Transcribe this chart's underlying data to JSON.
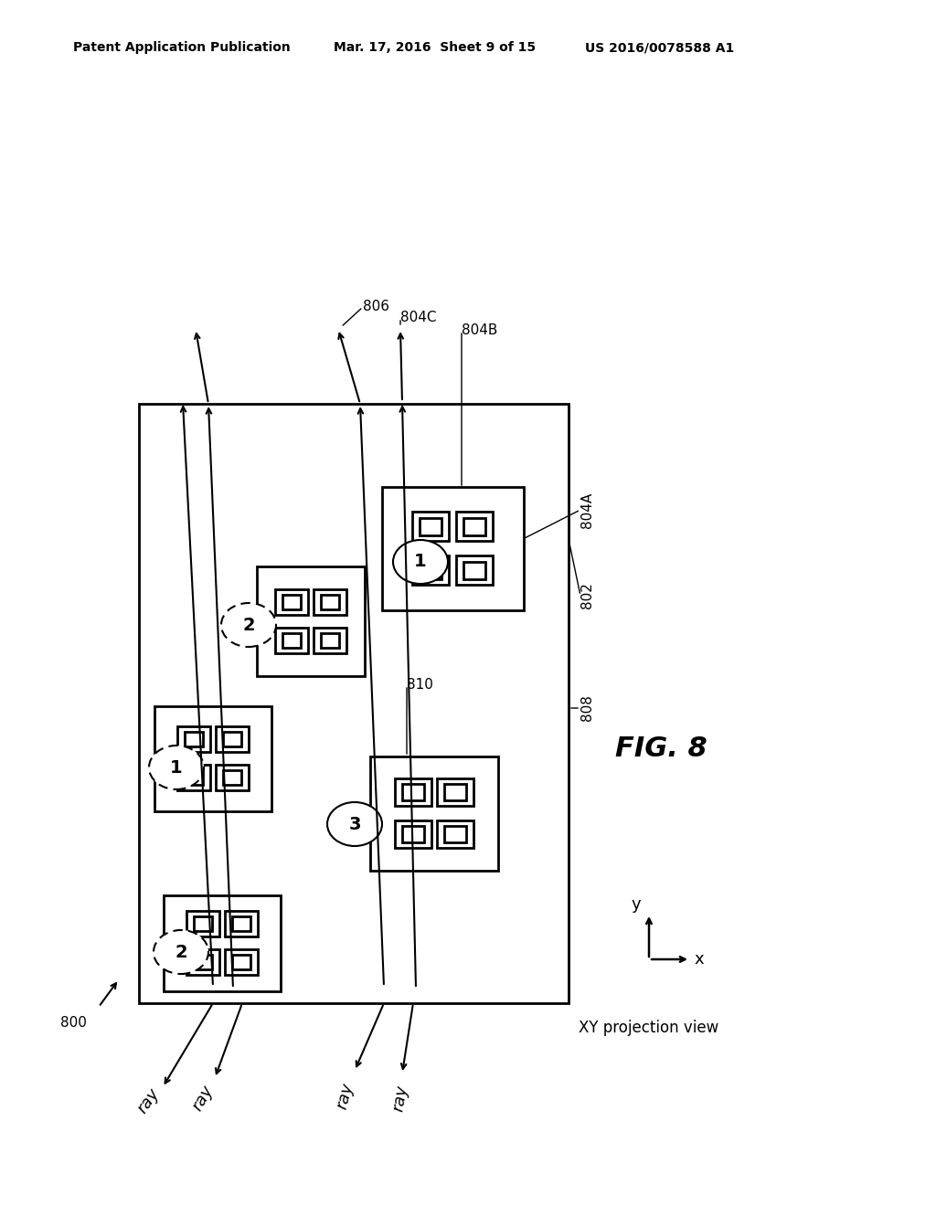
{
  "bg_color": "#ffffff",
  "header_left": "Patent Application Publication",
  "header_mid": "Mar. 17, 2016  Sheet 9 of 15",
  "header_right": "US 2016/0078588 A1",
  "fig_label": "FIG. 8"
}
